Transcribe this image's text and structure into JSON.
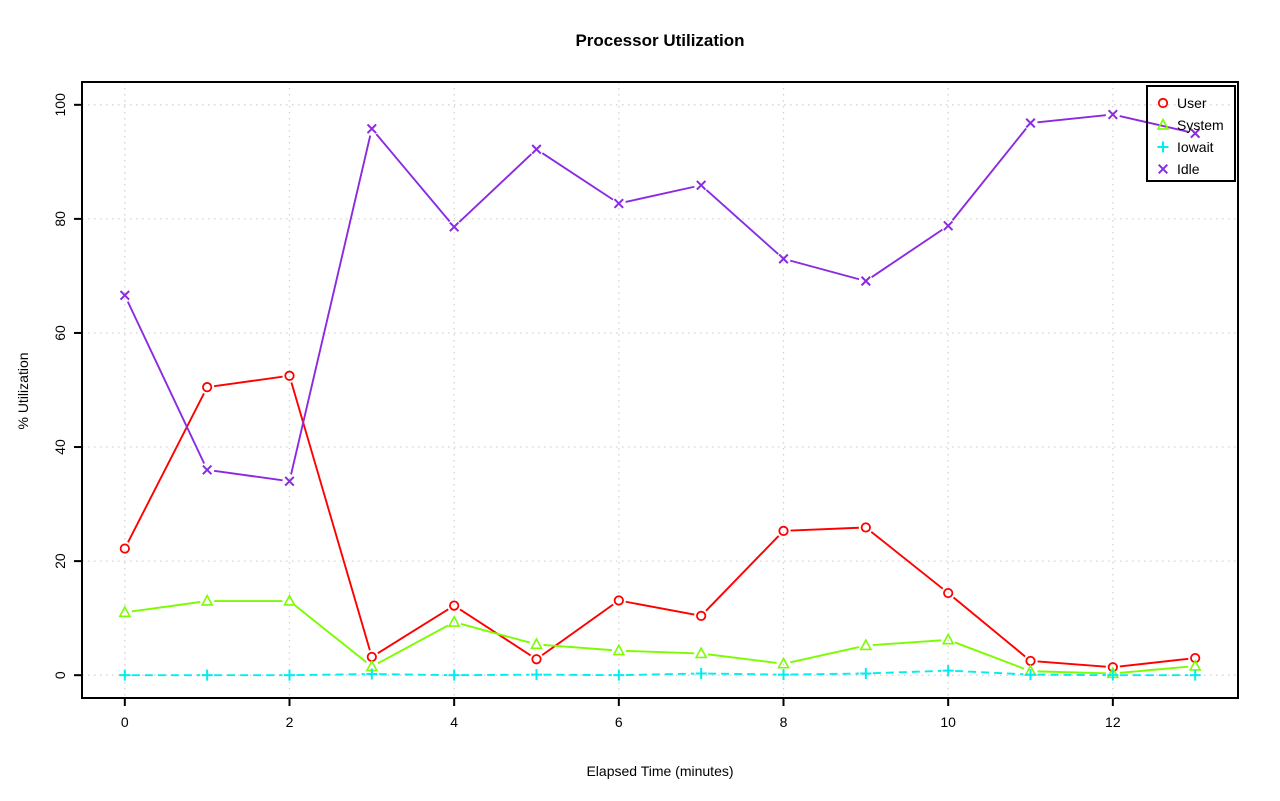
{
  "chart_data": {
    "type": "line",
    "title": "Processor Utilization",
    "xlabel": "Elapsed Time (minutes)",
    "ylabel": "% Utilization",
    "x": [
      0,
      1,
      2,
      3,
      4,
      5,
      6,
      7,
      8,
      9,
      10,
      11,
      12,
      13
    ],
    "x_ticks": [
      0,
      2,
      4,
      6,
      8,
      10,
      12
    ],
    "y_ticks": [
      0,
      20,
      40,
      60,
      80,
      100
    ],
    "xlim": [
      -0.52,
      13.52
    ],
    "ylim": [
      -4,
      104
    ],
    "grid": true,
    "grid_color": "#d4d4d4",
    "legend_position": "top-right",
    "series": [
      {
        "name": "User",
        "color": "#ff0000",
        "marker": "circle",
        "line": "solid",
        "values": [
          22.2,
          50.5,
          52.5,
          3.2,
          12.2,
          2.8,
          13.1,
          10.4,
          25.3,
          25.9,
          14.4,
          2.5,
          1.4,
          3.0
        ]
      },
      {
        "name": "System",
        "color": "#7cfc00",
        "marker": "triangle",
        "line": "solid",
        "values": [
          11.0,
          13.0,
          13.0,
          1.5,
          9.3,
          5.4,
          4.3,
          3.8,
          2.0,
          5.2,
          6.2,
          0.7,
          0.3,
          1.6
        ]
      },
      {
        "name": "Iowait",
        "color": "#00eeee",
        "marker": "plus",
        "line": "dashed",
        "values": [
          0,
          0,
          0,
          0.2,
          0,
          0.1,
          0,
          0.3,
          0.1,
          0.3,
          0.8,
          0.1,
          0,
          0
        ]
      },
      {
        "name": "Idle",
        "color": "#8a2be2",
        "marker": "x",
        "line": "solid",
        "values": [
          66.6,
          36.0,
          34.0,
          95.8,
          78.6,
          92.2,
          82.7,
          85.9,
          73.0,
          69.1,
          78.8,
          96.8,
          98.3,
          95.0
        ]
      }
    ]
  }
}
